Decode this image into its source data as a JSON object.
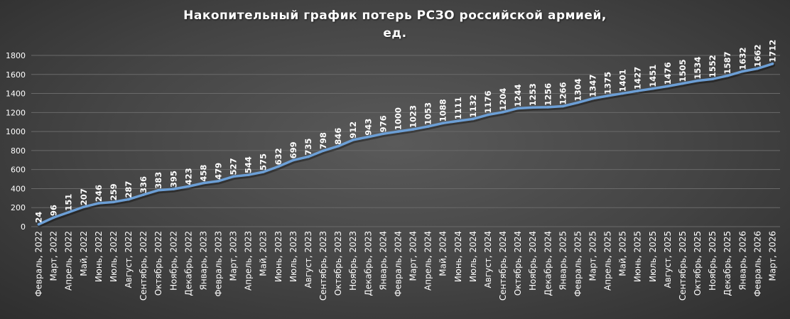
{
  "chart_data": {
    "type": "line",
    "title_lines": [
      "Накопительный  график  потерь  РСЗО  российской  армией,",
      "ед."
    ],
    "categories": [
      "Февраль, 2022",
      "Март, 2022",
      "Апрель, 2022",
      "Май, 2022",
      "Июнь, 2022",
      "Июль, 2022",
      "Август, 2022",
      "Сентябрь, 2022",
      "Октябрь, 2022",
      "Ноябрь, 2022",
      "Декабрь, 2022",
      "Январь, 2023",
      "Февраль, 2023",
      "Март, 2023",
      "Апрель, 2023",
      "Май, 2023",
      "Июнь, 2023",
      "Июль, 2023",
      "Август, 2023",
      "Сентябрь, 2023",
      "Октябрь, 2023",
      "Ноябрь, 2023",
      "Декабрь, 2023",
      "Январь, 2024",
      "Февраль, 2024",
      "Март, 2024",
      "Апрель, 2024",
      "Май, 2024",
      "Июнь, 2024",
      "Июль, 2024",
      "Август, 2024",
      "Сентябрь, 2024",
      "Октябрь, 2024",
      "Ноябрь, 2024",
      "Декабрь, 2024",
      "Январь, 2025",
      "Февраль, 2025",
      "Март, 2025",
      "Апрель, 2025",
      "Май, 2025",
      "Июнь, 2025",
      "Июль, 2025",
      "Август, 2025",
      "Сентябрь, 2025",
      "Октябрь, 2025",
      "Ноябрь, 2025",
      "Декабрь, 2025",
      "Январь, 2026",
      "Февраль, 2026",
      "Март, 2026"
    ],
    "values": [
      24,
      96,
      151,
      207,
      246,
      259,
      287,
      336,
      383,
      395,
      423,
      458,
      479,
      527,
      544,
      575,
      632,
      699,
      735,
      798,
      846,
      912,
      943,
      976,
      1000,
      1023,
      1053,
      1088,
      1111,
      1132,
      1176,
      1204,
      1244,
      1253,
      1256,
      1266,
      1304,
      1347,
      1375,
      1401,
      1427,
      1451,
      1476,
      1505,
      1534,
      1552,
      1587,
      1632,
      1662,
      1712
    ],
    "yticks": [
      0,
      200,
      400,
      600,
      800,
      1000,
      1200,
      1400,
      1600,
      1800
    ],
    "ylim": [
      0,
      1800
    ],
    "grid": true,
    "line_color": "#6c9fd6",
    "label_color": "#ffffff",
    "tick_color": "#ffffff",
    "grid_color": "#6a6a6a"
  }
}
